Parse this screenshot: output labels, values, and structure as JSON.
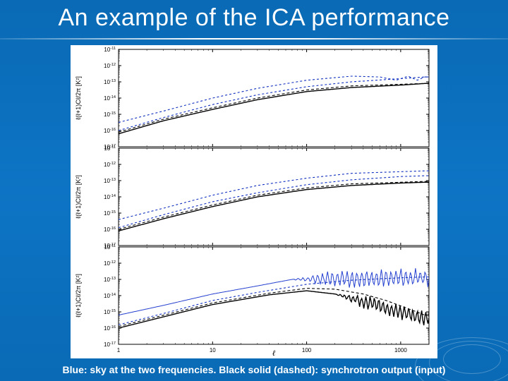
{
  "title": "An example of the ICA performance",
  "caption": "Blue: sky at the two frequencies. Black solid (dashed): synchrotron output (input)",
  "background_color": "#0b6fbf",
  "text_color": "#ffffff",
  "chart_background": "#ffffff",
  "panels": [
    {
      "ylabel": "ℓ(ℓ+1)Cℓ/2π [K²]",
      "yticks_exp": [
        -17,
        -16,
        -15,
        -14,
        -13,
        -12,
        -11
      ],
      "series": [
        {
          "name": "blue_dashed_upper",
          "color": "#1030c0",
          "dash": "3,3",
          "width": 1.1,
          "points": [
            [
              1,
              -15.5
            ],
            [
              3,
              -14.8
            ],
            [
              10,
              -14.0
            ],
            [
              30,
              -13.4
            ],
            [
              100,
              -12.9
            ],
            [
              300,
              -12.65
            ],
            [
              600,
              -12.7
            ],
            [
              900,
              -12.9
            ],
            [
              1200,
              -12.65
            ],
            [
              1500,
              -12.9
            ],
            [
              1800,
              -12.7
            ]
          ]
        },
        {
          "name": "blue_dashed_lower",
          "color": "#1030c0",
          "dash": "3,3",
          "width": 1.1,
          "points": [
            [
              1,
              -16.0
            ],
            [
              3,
              -15.2
            ],
            [
              10,
              -14.4
            ],
            [
              30,
              -13.8
            ],
            [
              100,
              -13.3
            ],
            [
              300,
              -13.0
            ],
            [
              1000,
              -12.8
            ],
            [
              1800,
              -12.7
            ]
          ]
        },
        {
          "name": "black_dashed",
          "color": "#000000",
          "dash": "4,3",
          "width": 1.1,
          "points": [
            [
              1,
              -16.1
            ],
            [
              3,
              -15.3
            ],
            [
              10,
              -14.6
            ],
            [
              30,
              -14.0
            ],
            [
              100,
              -13.5
            ],
            [
              300,
              -13.25
            ],
            [
              1000,
              -13.15
            ],
            [
              1800,
              -13.1
            ]
          ]
        },
        {
          "name": "black_solid",
          "color": "#000000",
          "dash": "",
          "width": 1.4,
          "points": [
            [
              1,
              -16.2
            ],
            [
              3,
              -15.4
            ],
            [
              10,
              -14.7
            ],
            [
              30,
              -14.1
            ],
            [
              100,
              -13.6
            ],
            [
              300,
              -13.35
            ],
            [
              1000,
              -13.2
            ],
            [
              1800,
              -13.1
            ]
          ]
        }
      ]
    },
    {
      "ylabel": "ℓ(ℓ+1)Cℓ/2π [K²]",
      "yticks_exp": [
        -17,
        -16,
        -15,
        -14,
        -13,
        -12,
        -11
      ],
      "series": [
        {
          "name": "blue_dashed_upper",
          "color": "#1030c0",
          "dash": "3,3",
          "width": 1.1,
          "points": [
            [
              1,
              -15.4
            ],
            [
              3,
              -14.7
            ],
            [
              10,
              -13.9
            ],
            [
              30,
              -13.3
            ],
            [
              100,
              -12.85
            ],
            [
              300,
              -12.55
            ],
            [
              1000,
              -12.45
            ],
            [
              1800,
              -12.4
            ]
          ]
        },
        {
          "name": "blue_dashed_lower",
          "color": "#1030c0",
          "dash": "3,3",
          "width": 1.1,
          "points": [
            [
              1,
              -15.9
            ],
            [
              3,
              -15.1
            ],
            [
              10,
              -14.3
            ],
            [
              30,
              -13.75
            ],
            [
              100,
              -13.25
            ],
            [
              300,
              -12.95
            ],
            [
              1000,
              -12.75
            ],
            [
              1800,
              -12.7
            ]
          ]
        },
        {
          "name": "black_dashed",
          "color": "#000000",
          "dash": "4,3",
          "width": 1.1,
          "points": [
            [
              1,
              -16.0
            ],
            [
              3,
              -15.25
            ],
            [
              10,
              -14.5
            ],
            [
              30,
              -13.9
            ],
            [
              100,
              -13.45
            ],
            [
              300,
              -13.2
            ],
            [
              1000,
              -13.1
            ],
            [
              1800,
              -13.05
            ]
          ]
        },
        {
          "name": "black_solid",
          "color": "#000000",
          "dash": "",
          "width": 1.4,
          "points": [
            [
              1,
              -16.1
            ],
            [
              3,
              -15.35
            ],
            [
              10,
              -14.6
            ],
            [
              30,
              -14.0
            ],
            [
              100,
              -13.55
            ],
            [
              300,
              -13.3
            ],
            [
              1000,
              -13.15
            ],
            [
              1800,
              -13.1
            ]
          ]
        }
      ]
    },
    {
      "ylabel": "ℓ(ℓ+1)Cℓ/2π [K²]",
      "yticks_exp": [
        -17,
        -16,
        -15,
        -14,
        -13,
        -12,
        -11
      ],
      "series": [
        {
          "name": "blue_body",
          "color": "#2440d0",
          "dash": "",
          "width": 1.0,
          "oscillate": {
            "from": 70,
            "amp": 0.6,
            "periods": 28
          },
          "points": [
            [
              1,
              -15.2
            ],
            [
              3,
              -14.6
            ],
            [
              10,
              -13.9
            ],
            [
              30,
              -13.4
            ],
            [
              70,
              -13.0
            ],
            [
              1800,
              -12.9
            ]
          ]
        },
        {
          "name": "blue_dashed",
          "color": "#1030c0",
          "dash": "3,3",
          "width": 1.1,
          "points": [
            [
              1,
              -15.8
            ],
            [
              3,
              -15.1
            ],
            [
              10,
              -14.3
            ],
            [
              30,
              -13.8
            ],
            [
              100,
              -13.3
            ],
            [
              300,
              -13.05
            ],
            [
              1000,
              -12.9
            ],
            [
              1800,
              -12.85
            ]
          ]
        },
        {
          "name": "black_dashed",
          "color": "#000000",
          "dash": "4,3",
          "width": 1.1,
          "points": [
            [
              1,
              -15.9
            ],
            [
              10,
              -14.45
            ],
            [
              40,
              -13.85
            ],
            [
              100,
              -13.55
            ],
            [
              200,
              -13.6
            ],
            [
              400,
              -13.9
            ],
            [
              700,
              -14.3
            ],
            [
              1200,
              -14.8
            ],
            [
              1800,
              -15.2
            ]
          ]
        },
        {
          "name": "black_solid",
          "color": "#000000",
          "dash": "",
          "width": 1.4,
          "oscillate": {
            "from": 200,
            "amp": 0.5,
            "periods": 22
          },
          "points": [
            [
              1,
              -16.0
            ],
            [
              10,
              -14.55
            ],
            [
              40,
              -13.95
            ],
            [
              100,
              -13.7
            ],
            [
              200,
              -13.9
            ],
            [
              1800,
              -15.4
            ]
          ]
        }
      ]
    }
  ],
  "xaxis": {
    "label": "ℓ",
    "ticks": [
      1,
      10,
      100,
      1000
    ],
    "xlim": [
      1,
      2000
    ],
    "scale": "log"
  },
  "axis_fontsize": 9,
  "tick_fontsize": 8,
  "axis_color": "#000000",
  "tick_color": "#000000"
}
